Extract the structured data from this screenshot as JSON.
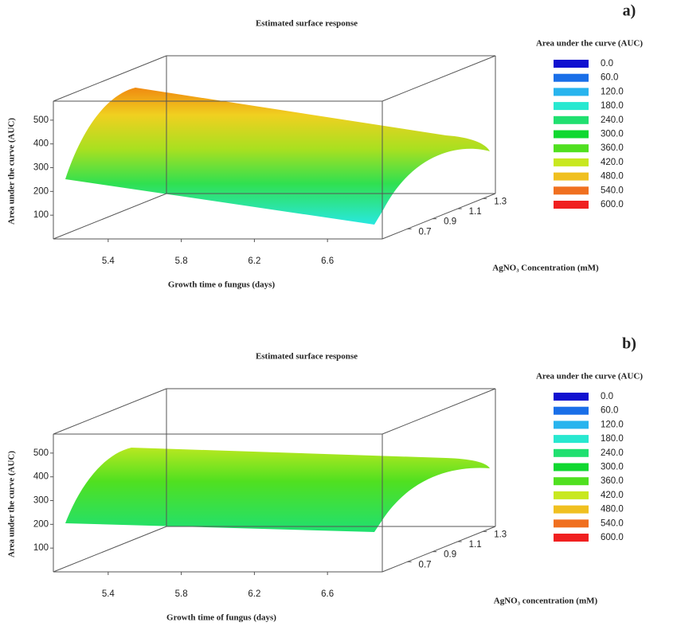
{
  "chart_data": [
    {
      "type": "surface",
      "panel_label": "a)",
      "title": "Estimated surface response",
      "zlabel": "Area under the curve (AUC)",
      "xlabel": "Growth time o fungus (days)",
      "ylabel": "AgNO₃ Concentration (mM)",
      "legend_title": "Area under the curve (AUC)",
      "levels": [
        {
          "value": 0,
          "label": "0.0"
        },
        {
          "value": 60,
          "label": "60.0"
        },
        {
          "value": 120,
          "label": "120.0"
        },
        {
          "value": 180,
          "label": "180.0"
        },
        {
          "value": 240,
          "label": "240.0"
        },
        {
          "value": 300,
          "label": "300.0"
        },
        {
          "value": 360,
          "label": "360.0"
        },
        {
          "value": 420,
          "label": "420.0"
        },
        {
          "value": 480,
          "label": "480.0"
        },
        {
          "value": 540,
          "label": "540.0"
        },
        {
          "value": 600,
          "label": "600.0"
        }
      ],
      "level_colors": [
        "#1010d0",
        "#1a6fe8",
        "#28b4ee",
        "#28e8d0",
        "#20e070",
        "#10d830",
        "#50e020",
        "#c8e820",
        "#f0c020",
        "#f07020",
        "#f02020"
      ],
      "xlim": [
        5.1,
        6.9
      ],
      "xticks": [
        5.4,
        5.8,
        6.2,
        6.6
      ],
      "ylim": [
        0.5,
        1.4
      ],
      "yticks": [
        0.7,
        0.9,
        1.1,
        1.3
      ],
      "zlim": [
        0,
        580
      ],
      "zticks": [
        100,
        200,
        300,
        400,
        500
      ]
    },
    {
      "type": "surface",
      "panel_label": "b)",
      "title": "Estimated surface response",
      "zlabel": "Area under the curve (AUC)",
      "xlabel": "Growth time of fungus (days)",
      "ylabel": "AgNO₃ concentration (mM)",
      "legend_title": "Area under the curve (AUC)",
      "levels": [
        {
          "value": 0,
          "label": "0.0"
        },
        {
          "value": 60,
          "label": "60.0"
        },
        {
          "value": 120,
          "label": "120.0"
        },
        {
          "value": 180,
          "label": "180.0"
        },
        {
          "value": 240,
          "label": "240.0"
        },
        {
          "value": 300,
          "label": "300.0"
        },
        {
          "value": 360,
          "label": "360.0"
        },
        {
          "value": 420,
          "label": "420.0"
        },
        {
          "value": 480,
          "label": "480.0"
        },
        {
          "value": 540,
          "label": "540.0"
        },
        {
          "value": 600,
          "label": "600.0"
        }
      ],
      "level_colors": [
        "#1010d0",
        "#1a6fe8",
        "#28b4ee",
        "#28e8d0",
        "#20e070",
        "#10d830",
        "#50e020",
        "#c8e820",
        "#f0c020",
        "#f07020",
        "#f02020"
      ],
      "xlim": [
        5.1,
        6.9
      ],
      "xticks": [
        5.4,
        5.8,
        6.2,
        6.6
      ],
      "ylim": [
        0.5,
        1.4
      ],
      "yticks": [
        0.7,
        0.9,
        1.1,
        1.3
      ],
      "zlim": [
        0,
        580
      ],
      "zticks": [
        100,
        200,
        300,
        400,
        500
      ]
    }
  ]
}
